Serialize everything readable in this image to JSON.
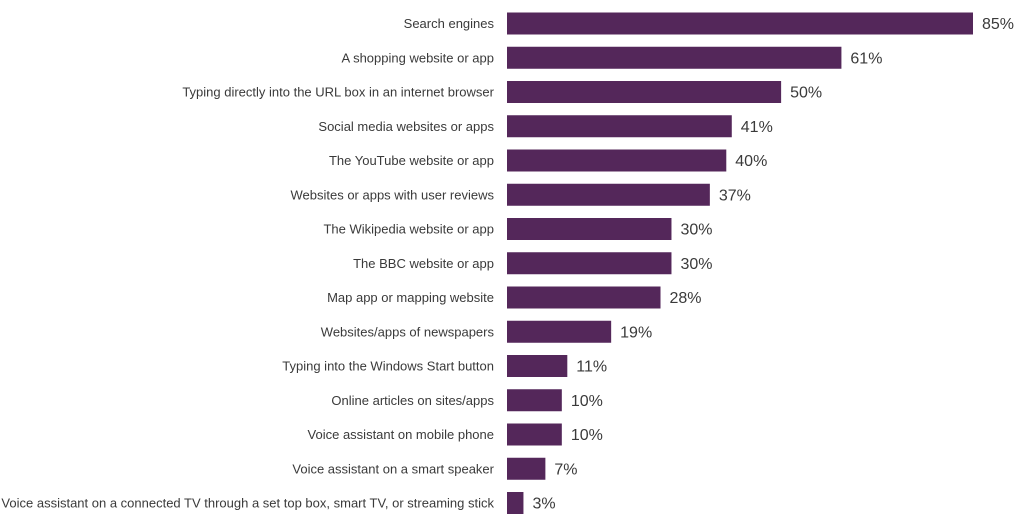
{
  "chart_data": {
    "type": "bar",
    "orientation": "horizontal",
    "title": "",
    "xlabel": "",
    "ylabel": "",
    "value_suffix": "%",
    "xlim": [
      0,
      85
    ],
    "grid": false,
    "legend": "none",
    "bar_color": "#54275a",
    "categories": [
      "Search engines",
      "A shopping website or app",
      "Typing directly into the URL box in an internet browser",
      "Social media websites or apps",
      "The YouTube website or app",
      "Websites or apps with user reviews",
      "The Wikipedia website or app",
      "The BBC website or app",
      "Map app or mapping website",
      "Websites/apps of newspapers",
      "Typing into the Windows Start button",
      "Online articles on sites/apps",
      "Voice assistant on mobile phone",
      "Voice assistant on a smart speaker",
      "Voice assistant on a connected TV through a set top box, smart TV, or streaming stick"
    ],
    "values": [
      85,
      61,
      50,
      41,
      40,
      37,
      30,
      30,
      28,
      19,
      11,
      10,
      10,
      7,
      3
    ],
    "value_labels": [
      "85%",
      "61%",
      "50%",
      "41%",
      "40%",
      "37%",
      "30%",
      "30%",
      "28%",
      "19%",
      "11%",
      "10%",
      "10%",
      "7%",
      "3%"
    ]
  }
}
